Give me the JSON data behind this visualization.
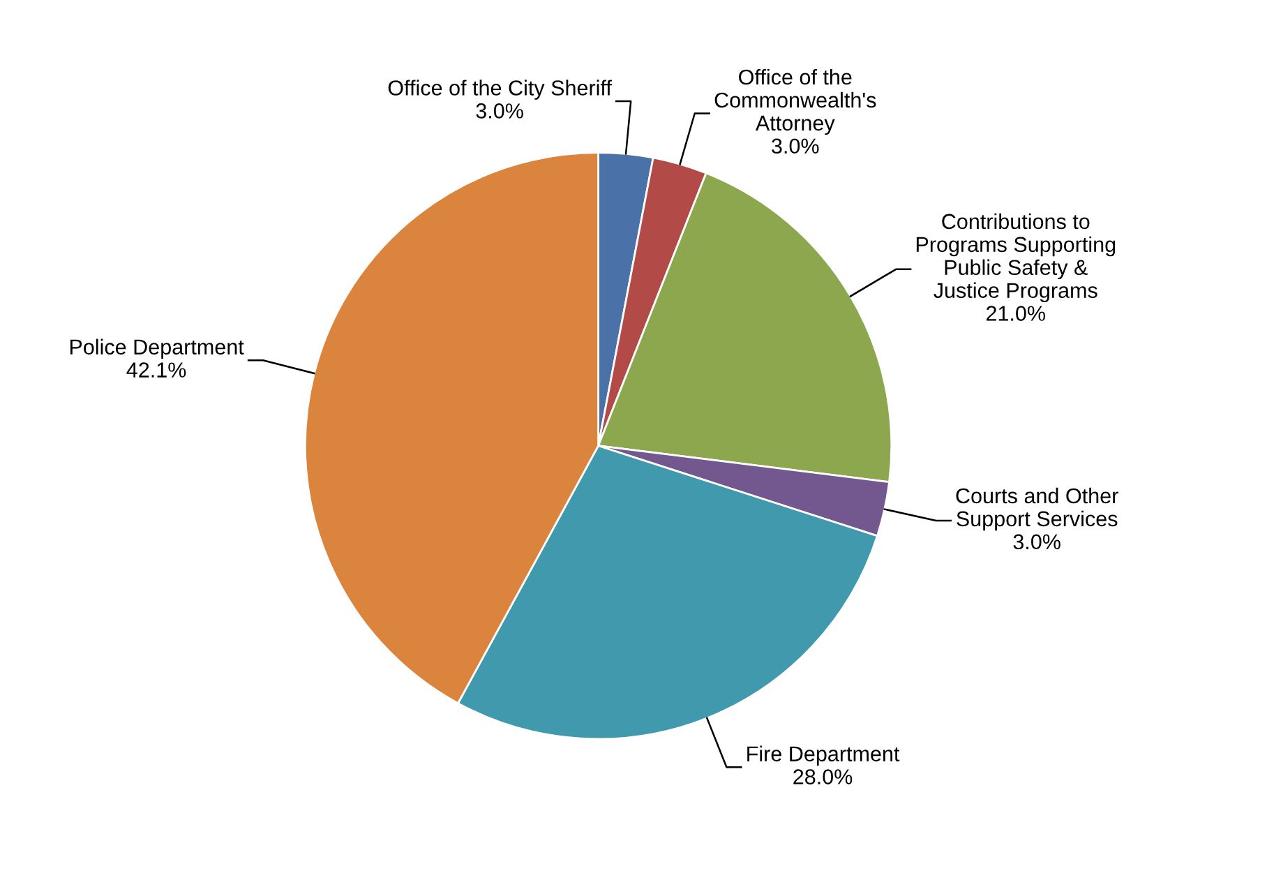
{
  "chart_data": {
    "type": "pie",
    "categories": [
      "Office of the City Sheriff",
      "Office of the\nCommonwealth's\nAttorney",
      "Contributions to\nPrograms Supporting\nPublic Safety &\nJustice Programs",
      "Courts and Other\nSupport Services",
      "Fire Department",
      "Police Department"
    ],
    "values": [
      3.0,
      3.0,
      21.0,
      3.0,
      28.0,
      42.1
    ],
    "value_labels": [
      "3.0%",
      "3.0%",
      "21.0%",
      "3.0%",
      "28.0%",
      "42.1%"
    ],
    "colors": [
      "#4a72a8",
      "#b24a47",
      "#8ca74d",
      "#73588f",
      "#4199ae",
      "#db843d"
    ],
    "legend": false
  }
}
